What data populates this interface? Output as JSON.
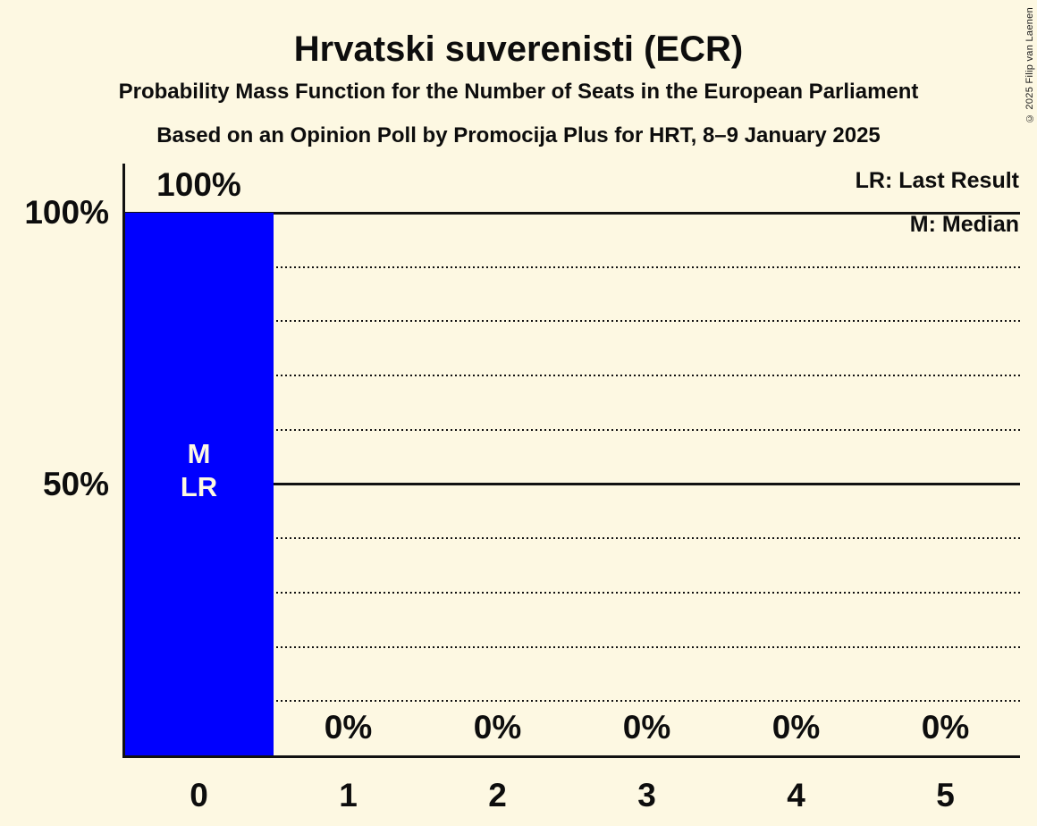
{
  "page": {
    "background": "#FDF8E2",
    "copyright": "© 2025 Filip van Laenen"
  },
  "chart_data": {
    "type": "bar",
    "title": "Hrvatski suverenisti (ECR)",
    "subtitle1": "Probability Mass Function for the Number of Seats in the European Parliament",
    "subtitle2": "Based on an Opinion Poll by Promocija Plus for HRT, 8–9 January 2025",
    "xlabel": "",
    "ylabel": "",
    "categories": [
      "0",
      "1",
      "2",
      "3",
      "4",
      "5"
    ],
    "values": [
      100,
      0,
      0,
      0,
      0,
      0
    ],
    "value_labels": [
      "100%",
      "0%",
      "0%",
      "0%",
      "0%",
      "0%"
    ],
    "bar_color": "#0000FF",
    "bar_annotation": {
      "category_index": 0,
      "lines": [
        "M",
        "LR"
      ]
    },
    "ylim": [
      0,
      100
    ],
    "y_ticks": [
      {
        "value": 100,
        "label": "100%"
      },
      {
        "value": 50,
        "label": "50%"
      }
    ],
    "gridlines": {
      "solid": [
        100,
        50
      ],
      "dotted": [
        90,
        80,
        70,
        60,
        40,
        30,
        20,
        10
      ]
    },
    "legend": [
      "LR: Last Result",
      "M: Median"
    ],
    "legend_position": "top-right",
    "grid": true
  }
}
